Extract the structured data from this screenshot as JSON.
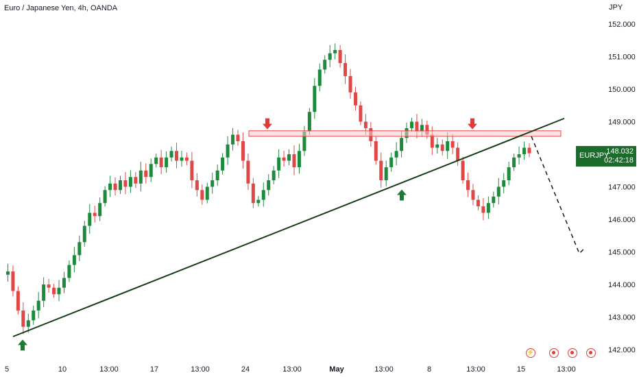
{
  "header": {
    "title": "Euro / Japanese Yen, 4h, OANDA"
  },
  "axis": {
    "unit": "JPY"
  },
  "price_badge": {
    "symbol": "EURJPY",
    "price": "148.032",
    "countdown": "02:42:18",
    "color": "#1b6b2a"
  },
  "colors": {
    "up": "#26a69a",
    "up_actual": "#1e8a3c",
    "down": "#e04848",
    "trendline": "#143d14",
    "zone_fill": "#f7c8c8",
    "zone_stroke": "#e04848",
    "arrow_down": "#e03a3a",
    "arrow_up": "#1e7a32"
  },
  "events": [
    {
      "icon": "lightning-icon"
    },
    {
      "icon": "economic-event-icon"
    },
    {
      "icon": "economic-event-icon"
    },
    {
      "icon": "economic-event-icon"
    }
  ],
  "chart_data": {
    "type": "candlestick",
    "ylim": [
      141.9,
      152.3
    ],
    "yticks": [
      "152.000",
      "151.000",
      "150.000",
      "149.000",
      "148.000",
      "147.000",
      "146.000",
      "145.000",
      "144.000",
      "143.000",
      "142.000"
    ],
    "xticks": [
      "5",
      "10",
      "13:00",
      "17",
      "13:00",
      "24",
      "13:00",
      "May",
      "13:00",
      "8",
      "13:00",
      "15",
      "13:00"
    ],
    "bold_xtick": "May",
    "last_price": 148.032,
    "resistance_zone": {
      "low": 148.55,
      "high": 148.72
    },
    "trendline": {
      "start_price": 142.4,
      "end_price": 149.1
    },
    "projection": [
      148.55,
      144.95,
      145.1
    ],
    "signals": [
      {
        "type": "sell",
        "price": 148.85
      },
      {
        "type": "sell",
        "price": 148.85
      },
      {
        "type": "buy",
        "price": 147.0
      },
      {
        "type": "buy",
        "price": 142.35
      }
    ],
    "path": [
      144.3,
      144.4,
      143.8,
      143.2,
      142.7,
      142.9,
      143.2,
      143.5,
      144.0,
      143.9,
      143.7,
      143.9,
      144.2,
      144.6,
      144.9,
      145.3,
      145.8,
      146.2,
      146.1,
      146.5,
      146.9,
      147.1,
      146.9,
      147.2,
      147.0,
      147.3,
      147.1,
      147.5,
      147.3,
      147.7,
      147.9,
      147.6,
      147.9,
      148.1,
      147.8,
      147.9,
      147.8,
      147.2,
      146.9,
      146.6,
      147.0,
      147.2,
      147.5,
      147.9,
      148.3,
      148.6,
      148.4,
      147.8,
      147.1,
      146.5,
      146.6,
      146.9,
      147.2,
      147.5,
      147.9,
      147.8,
      148.0,
      147.6,
      148.1,
      148.7,
      149.3,
      150.1,
      150.6,
      150.9,
      151.1,
      151.2,
      150.8,
      150.4,
      149.9,
      149.5,
      149.0,
      148.8,
      148.4,
      147.8,
      147.2,
      147.6,
      147.9,
      148.1,
      148.5,
      148.8,
      149.0,
      148.7,
      148.9,
      148.6,
      148.2,
      148.3,
      148.1,
      148.4,
      148.2,
      147.8,
      147.2,
      146.9,
      146.6,
      146.4,
      146.2,
      146.5,
      146.7,
      147.0,
      147.2,
      147.6,
      147.9,
      148.0,
      148.2,
      148.03
    ]
  }
}
